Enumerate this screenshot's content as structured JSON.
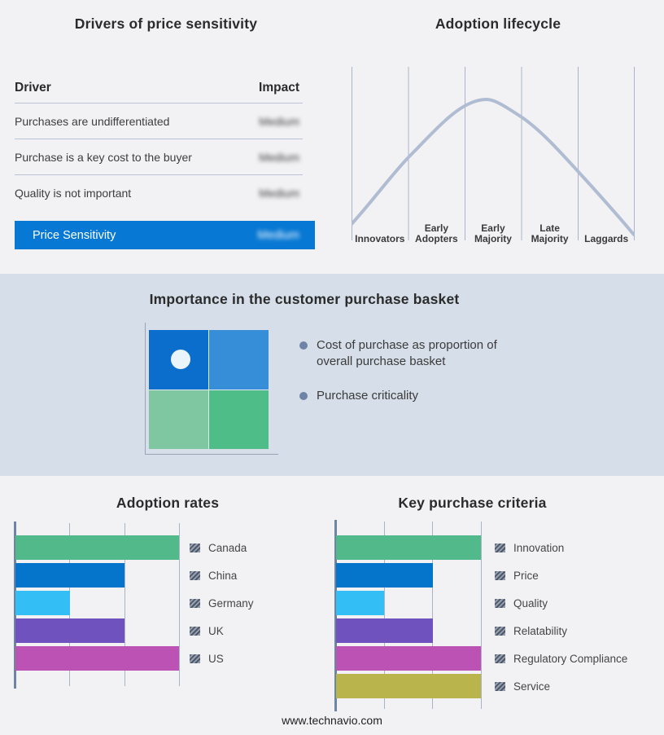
{
  "page": {
    "footer": "www.technavio.com",
    "background_color": "#F2F2F4",
    "band_background_color": "#D5DEE9"
  },
  "drivers_panel": {
    "title": "Drivers of price sensitivity",
    "columns": {
      "driver": "Driver",
      "impact": "Impact"
    },
    "rows": [
      {
        "driver": "Purchases are undifferentiated",
        "impact": "Medium",
        "impact_blurred": true
      },
      {
        "driver": "Purchase is a key cost to the buyer",
        "impact": "Medium",
        "impact_blurred": true
      },
      {
        "driver": "Quality is not important",
        "impact": "Medium",
        "impact_blurred": true
      }
    ],
    "highlight_row": {
      "driver": "Price Sensitivity",
      "impact": "Medium",
      "impact_blurred": true,
      "background_color": "#0778D3",
      "text_color": "#FFFFFF"
    }
  },
  "basket_panel": {
    "title": "Importance in the customer purchase basket",
    "bullets": [
      "Cost of purchase as proportion of overall purchase basket",
      "Purchase criticality"
    ],
    "bullet_color": "#6F83A6",
    "quadrant_colors": {
      "top_left": "#0B6ECD",
      "top_right": "#378ED8",
      "bottom_left": "#7EC7A0",
      "bottom_right": "#4FBD88"
    },
    "marker_dot_color": "#EAF4FB"
  },
  "chart_data": [
    {
      "id": "adoption_lifecycle",
      "type": "line",
      "title": "Adoption lifecycle",
      "categories": [
        "Innovators",
        "Early Adopters",
        "Early Majority",
        "Late Majority",
        "Laggards"
      ],
      "shape": "bell curve peaking over Early Majority",
      "curve_points_norm_x_y": [
        [
          0.0,
          0.1
        ],
        [
          0.2,
          0.48
        ],
        [
          0.4,
          0.77
        ],
        [
          0.48,
          0.82
        ],
        [
          0.6,
          0.72
        ],
        [
          0.8,
          0.41
        ],
        [
          1.0,
          0.04
        ]
      ],
      "curve_color": "#AFBCD2",
      "grid_color": "#A9B4C9",
      "grid": true,
      "legend_position": "none"
    },
    {
      "id": "adoption_rates",
      "type": "bar",
      "title": "Adoption rates",
      "orientation": "horizontal",
      "categories": [
        "Canada",
        "China",
        "Germany",
        "UK",
        "US"
      ],
      "values": [
        3,
        2,
        1,
        2,
        3
      ],
      "xlim": [
        0,
        3
      ],
      "colors": [
        "#52BA8A",
        "#0575CB",
        "#33BFF5",
        "#6F52BD",
        "#BC52B4"
      ],
      "grid": true,
      "legend_position": "right"
    },
    {
      "id": "key_purchase_criteria",
      "type": "bar",
      "title": "Key purchase criteria",
      "orientation": "horizontal",
      "categories": [
        "Innovation",
        "Price",
        "Quality",
        "Relatability",
        "Regulatory Compliance",
        "Service"
      ],
      "values": [
        3,
        2,
        1,
        2,
        3,
        3
      ],
      "xlim": [
        0,
        3
      ],
      "colors": [
        "#52BA8A",
        "#0575CB",
        "#33BFF5",
        "#6F52BD",
        "#BC52B4",
        "#B9B44B"
      ],
      "grid": true,
      "legend_position": "right"
    }
  ]
}
